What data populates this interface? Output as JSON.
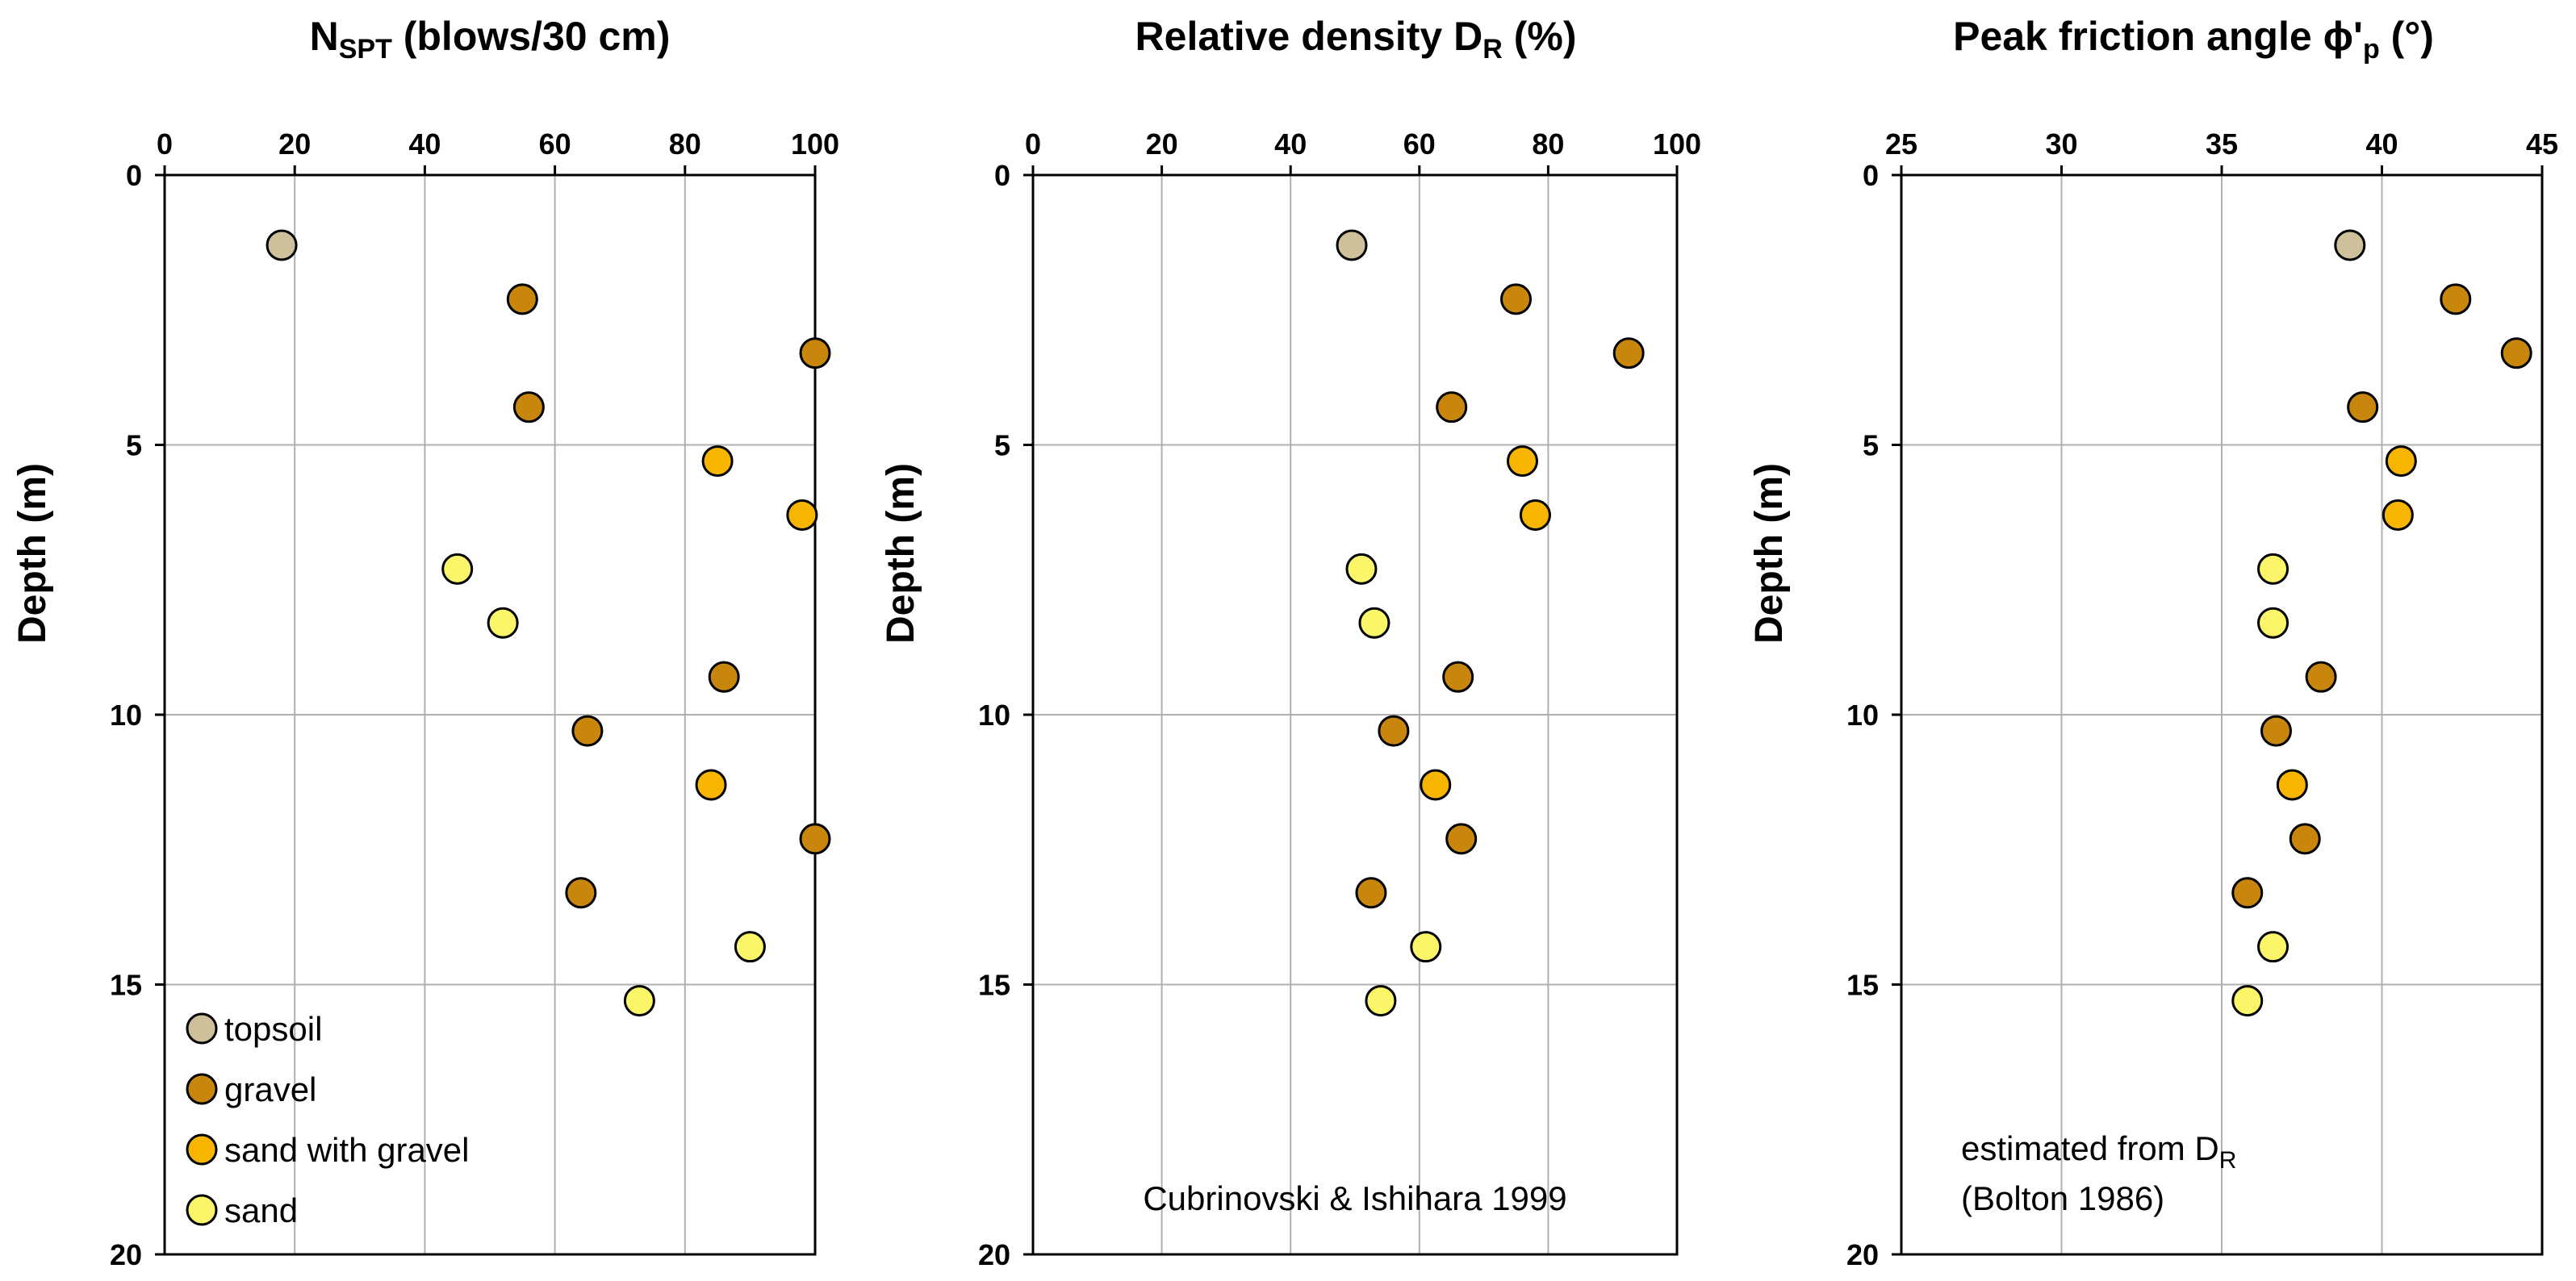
{
  "colors": {
    "topsoil": "#cdc09a",
    "gravel": "#c9860d",
    "sand with gravel": "#f8b500",
    "sand": "#fbf56a",
    "grid": "#b0b0b0",
    "axis": "#000000"
  },
  "chart_data": [
    {
      "type": "scatter",
      "id": "nspt",
      "title": "N",
      "title_sub": "SPT",
      "title_rest": " (blows/30 cm)",
      "xlabel": "",
      "ylabel": "Depth (m)",
      "xlim": [
        0,
        100
      ],
      "ylim": [
        0,
        20
      ],
      "y_inverted": true,
      "x_axis_position": "top",
      "xticks": [
        0,
        20,
        40,
        60,
        80,
        100
      ],
      "yticks": [
        0,
        5,
        10,
        15,
        20
      ],
      "grid": true,
      "legend_position": "bottom-left",
      "legend": [
        "topsoil",
        "gravel",
        "sand with gravel",
        "sand"
      ],
      "points": [
        {
          "x": 18,
          "y": 1.3,
          "cls": "topsoil"
        },
        {
          "x": 55,
          "y": 2.3,
          "cls": "gravel"
        },
        {
          "x": 100,
          "y": 3.3,
          "cls": "gravel"
        },
        {
          "x": 56,
          "y": 4.3,
          "cls": "gravel"
        },
        {
          "x": 85,
          "y": 5.3,
          "cls": "sand with gravel"
        },
        {
          "x": 98,
          "y": 6.3,
          "cls": "sand with gravel"
        },
        {
          "x": 45,
          "y": 7.3,
          "cls": "sand"
        },
        {
          "x": 52,
          "y": 8.3,
          "cls": "sand"
        },
        {
          "x": 86,
          "y": 9.3,
          "cls": "gravel"
        },
        {
          "x": 65,
          "y": 10.3,
          "cls": "gravel"
        },
        {
          "x": 84,
          "y": 11.3,
          "cls": "sand with gravel"
        },
        {
          "x": 100,
          "y": 12.3,
          "cls": "gravel"
        },
        {
          "x": 64,
          "y": 13.3,
          "cls": "gravel"
        },
        {
          "x": 90,
          "y": 14.3,
          "cls": "sand"
        },
        {
          "x": 73,
          "y": 15.3,
          "cls": "sand"
        }
      ]
    },
    {
      "type": "scatter",
      "id": "dr",
      "title": "Relative density D",
      "title_sub": "R",
      "title_rest": " (%)",
      "xlabel": "",
      "ylabel": "Depth (m)",
      "xlim": [
        0,
        100
      ],
      "ylim": [
        0,
        20
      ],
      "y_inverted": true,
      "x_axis_position": "top",
      "xticks": [
        0,
        20,
        40,
        60,
        80,
        100
      ],
      "yticks": [
        0,
        5,
        10,
        15,
        20
      ],
      "grid": true,
      "annotation": "Cubrinovski & Ishihara 1999",
      "points": [
        {
          "x": 49.5,
          "y": 1.3,
          "cls": "topsoil"
        },
        {
          "x": 75,
          "y": 2.3,
          "cls": "gravel"
        },
        {
          "x": 92.5,
          "y": 3.3,
          "cls": "gravel"
        },
        {
          "x": 65,
          "y": 4.3,
          "cls": "gravel"
        },
        {
          "x": 76,
          "y": 5.3,
          "cls": "sand with gravel"
        },
        {
          "x": 78,
          "y": 6.3,
          "cls": "sand with gravel"
        },
        {
          "x": 51,
          "y": 7.3,
          "cls": "sand"
        },
        {
          "x": 53,
          "y": 8.3,
          "cls": "sand"
        },
        {
          "x": 66,
          "y": 9.3,
          "cls": "gravel"
        },
        {
          "x": 56,
          "y": 10.3,
          "cls": "gravel"
        },
        {
          "x": 62.5,
          "y": 11.3,
          "cls": "sand with gravel"
        },
        {
          "x": 66.5,
          "y": 12.3,
          "cls": "gravel"
        },
        {
          "x": 52.5,
          "y": 13.3,
          "cls": "gravel"
        },
        {
          "x": 61,
          "y": 14.3,
          "cls": "sand"
        },
        {
          "x": 54,
          "y": 15.3,
          "cls": "sand"
        }
      ]
    },
    {
      "type": "scatter",
      "id": "phi",
      "title": "Peak friction angle ϕ'",
      "title_sub": "p",
      "title_rest": " (°)",
      "xlabel": "",
      "ylabel": "Depth (m)",
      "xlim": [
        25,
        45
      ],
      "ylim": [
        0,
        20
      ],
      "y_inverted": true,
      "x_axis_position": "top",
      "xticks": [
        25,
        30,
        35,
        40,
        45
      ],
      "yticks": [
        0,
        5,
        10,
        15,
        20
      ],
      "grid": true,
      "annotation_line1": "estimated from D",
      "annotation_line1_sub": "R",
      "annotation_line2": "(Bolton 1986)",
      "points": [
        {
          "x": 39,
          "y": 1.3,
          "cls": "topsoil"
        },
        {
          "x": 42.3,
          "y": 2.3,
          "cls": "gravel"
        },
        {
          "x": 44.2,
          "y": 3.3,
          "cls": "gravel"
        },
        {
          "x": 39.4,
          "y": 4.3,
          "cls": "gravel"
        },
        {
          "x": 40.6,
          "y": 5.3,
          "cls": "sand with gravel"
        },
        {
          "x": 40.5,
          "y": 6.3,
          "cls": "sand with gravel"
        },
        {
          "x": 36.6,
          "y": 7.3,
          "cls": "sand"
        },
        {
          "x": 36.6,
          "y": 8.3,
          "cls": "sand"
        },
        {
          "x": 38.1,
          "y": 9.3,
          "cls": "gravel"
        },
        {
          "x": 36.7,
          "y": 10.3,
          "cls": "gravel"
        },
        {
          "x": 37.2,
          "y": 11.3,
          "cls": "sand with gravel"
        },
        {
          "x": 37.6,
          "y": 12.3,
          "cls": "gravel"
        },
        {
          "x": 35.8,
          "y": 13.3,
          "cls": "gravel"
        },
        {
          "x": 36.6,
          "y": 14.3,
          "cls": "sand"
        },
        {
          "x": 35.8,
          "y": 15.3,
          "cls": "sand"
        }
      ]
    }
  ]
}
